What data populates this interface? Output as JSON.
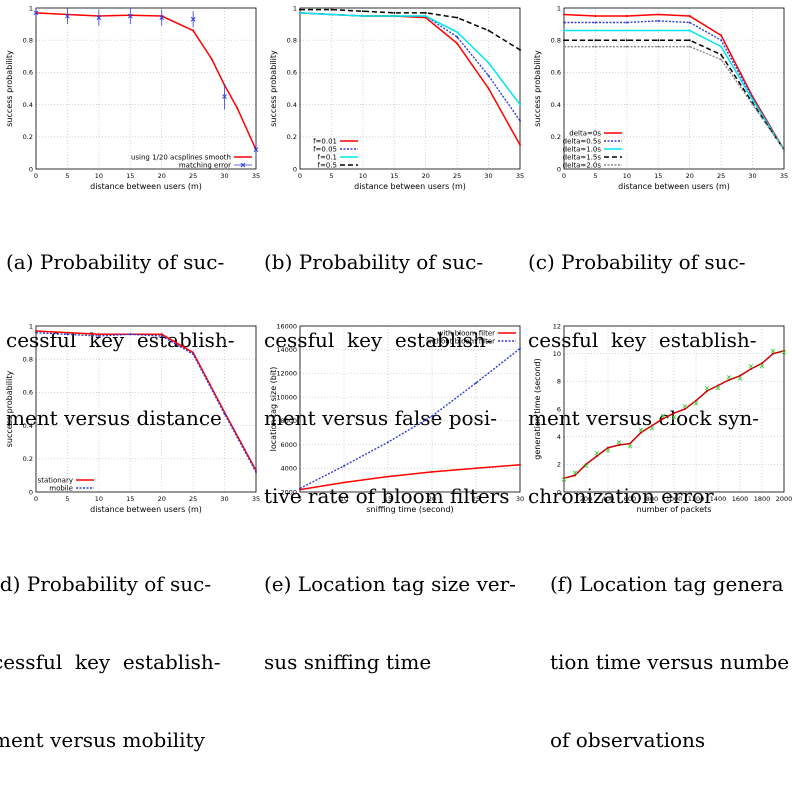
{
  "captions": {
    "a": [
      "(a) Probability of suc-",
      "cessful  key  establish-",
      "ment versus distance"
    ],
    "b": [
      "(b) Probability of suc-",
      "cessful  key  establish-",
      "ment versus false posi-",
      "tive rate of bloom filters"
    ],
    "c": [
      "(c) Probability of suc-",
      "cessful  key  establish-",
      "ment versus clock syn-",
      "chronization error"
    ],
    "d": [
      "(d) Probability of suc-",
      "cessful  key  establish-",
      "ment versus mobility"
    ],
    "e": [
      "(e) Location tag size ver-",
      "sus sniffing time"
    ],
    "f": [
      "(f) Location tag genera",
      "tion time versus numbe",
      "of observations"
    ]
  },
  "chart_data": [
    {
      "id": "a",
      "type": "line",
      "xlabel": "distance between users (m)",
      "ylabel": "success probability",
      "xlim": [
        0,
        35
      ],
      "ylim": [
        0,
        1
      ],
      "xticks": [
        "0",
        "5",
        "10",
        "15",
        "20",
        "25",
        "30",
        "35"
      ],
      "yticks": [
        "0",
        "0.2",
        "0.4",
        "0.6",
        "0.8",
        "1"
      ],
      "grid": true,
      "legend": "bottom-right",
      "series": [
        {
          "name": "using 1/20 acsplines smooth",
          "color": "#ff0000",
          "style": "solid",
          "x": [
            0,
            5,
            10,
            15,
            20,
            25,
            28,
            30,
            32,
            35
          ],
          "y": [
            0.97,
            0.96,
            0.95,
            0.955,
            0.95,
            0.86,
            0.68,
            0.52,
            0.38,
            0.12
          ]
        },
        {
          "name": "matching error",
          "color": "#2e3dd8",
          "style": "errorbar",
          "x": [
            0,
            5,
            10,
            15,
            20,
            25,
            30,
            35
          ],
          "y": [
            0.97,
            0.95,
            0.94,
            0.95,
            0.94,
            0.93,
            0.45,
            0.12
          ],
          "err": [
            0.03,
            0.05,
            0.05,
            0.05,
            0.05,
            0.05,
            0.08,
            0.05
          ]
        }
      ]
    },
    {
      "id": "b",
      "type": "line",
      "xlabel": "distance between users (m)",
      "ylabel": "success probability",
      "xlim": [
        0,
        35
      ],
      "ylim": [
        0,
        1
      ],
      "xticks": [
        "0",
        "5",
        "10",
        "15",
        "20",
        "25",
        "30",
        "35"
      ],
      "yticks": [
        "0",
        "0.2",
        "0.4",
        "0.6",
        "0.8",
        "1"
      ],
      "grid": true,
      "legend": "bottom-left",
      "series": [
        {
          "name": "f=0.01",
          "color": "#ff0000",
          "style": "solid",
          "x": [
            0,
            5,
            10,
            15,
            20,
            25,
            30,
            35
          ],
          "y": [
            0.97,
            0.96,
            0.95,
            0.95,
            0.94,
            0.78,
            0.5,
            0.15
          ]
        },
        {
          "name": "f=0.05",
          "color": "#2e3dd8",
          "style": "dotted",
          "x": [
            0,
            5,
            10,
            15,
            20,
            25,
            30,
            35
          ],
          "y": [
            0.97,
            0.96,
            0.95,
            0.95,
            0.95,
            0.82,
            0.58,
            0.3
          ]
        },
        {
          "name": "f=0.1",
          "color": "#00e5ee",
          "style": "solid",
          "x": [
            0,
            5,
            10,
            15,
            20,
            25,
            30,
            35
          ],
          "y": [
            0.97,
            0.96,
            0.95,
            0.95,
            0.95,
            0.85,
            0.66,
            0.4
          ]
        },
        {
          "name": "f=0.5",
          "color": "#000000",
          "style": "dashed",
          "x": [
            0,
            5,
            10,
            15,
            20,
            25,
            30,
            35
          ],
          "y": [
            0.99,
            0.99,
            0.98,
            0.97,
            0.97,
            0.94,
            0.86,
            0.74
          ]
        }
      ]
    },
    {
      "id": "c",
      "type": "line",
      "xlabel": "distance between users (m)",
      "ylabel": "success probability",
      "xlim": [
        0,
        35
      ],
      "ylim": [
        0,
        1
      ],
      "xticks": [
        "0",
        "5",
        "10",
        "15",
        "20",
        "25",
        "30",
        "35"
      ],
      "yticks": [
        "0",
        "0.2",
        "0.4",
        "0.6",
        "0.8",
        "1"
      ],
      "grid": true,
      "legend": "bottom-left",
      "series": [
        {
          "name": "delta=0s",
          "color": "#ff0000",
          "style": "solid",
          "x": [
            0,
            5,
            10,
            15,
            20,
            25,
            30,
            35
          ],
          "y": [
            0.96,
            0.95,
            0.95,
            0.96,
            0.95,
            0.83,
            0.45,
            0.12
          ]
        },
        {
          "name": "delta=0.5s",
          "color": "#2e3dd8",
          "style": "dotted",
          "x": [
            0,
            5,
            10,
            15,
            20,
            25,
            30,
            35
          ],
          "y": [
            0.91,
            0.91,
            0.91,
            0.92,
            0.91,
            0.8,
            0.44,
            0.12
          ]
        },
        {
          "name": "delta=1.0s",
          "color": "#00e5ee",
          "style": "solid",
          "x": [
            0,
            5,
            10,
            15,
            20,
            25,
            30,
            35
          ],
          "y": [
            0.86,
            0.86,
            0.86,
            0.86,
            0.86,
            0.76,
            0.43,
            0.12
          ]
        },
        {
          "name": "delta=1.5s",
          "color": "#000000",
          "style": "dashed",
          "x": [
            0,
            5,
            10,
            15,
            20,
            25,
            30,
            35
          ],
          "y": [
            0.8,
            0.8,
            0.8,
            0.8,
            0.8,
            0.71,
            0.41,
            0.12
          ]
        },
        {
          "name": "delta=2.0s",
          "color": "#888888",
          "style": "dotted",
          "x": [
            0,
            5,
            10,
            15,
            20,
            25,
            30,
            35
          ],
          "y": [
            0.76,
            0.76,
            0.76,
            0.76,
            0.76,
            0.68,
            0.4,
            0.12
          ]
        }
      ]
    },
    {
      "id": "d",
      "type": "line",
      "xlabel": "distance between users (m)",
      "ylabel": "success probability",
      "xlim": [
        0,
        35
      ],
      "ylim": [
        0,
        1
      ],
      "xticks": [
        "0",
        "5",
        "10",
        "15",
        "20",
        "25",
        "30",
        "35"
      ],
      "yticks": [
        "0",
        "0.2",
        "0.4",
        "0.6",
        "0.8",
        "1"
      ],
      "grid": true,
      "legend": "bottom-left",
      "series": [
        {
          "name": "stationary",
          "color": "#ff0000",
          "style": "solid",
          "x": [
            0,
            5,
            10,
            15,
            20,
            25,
            30,
            35
          ],
          "y": [
            0.97,
            0.96,
            0.95,
            0.95,
            0.95,
            0.84,
            0.48,
            0.13
          ]
        },
        {
          "name": "mobile",
          "color": "#2e3dd8",
          "style": "dotted",
          "x": [
            0,
            5,
            10,
            15,
            20,
            25,
            30,
            35
          ],
          "y": [
            0.96,
            0.95,
            0.94,
            0.95,
            0.94,
            0.83,
            0.47,
            0.12
          ]
        }
      ]
    },
    {
      "id": "e",
      "type": "line",
      "xlabel": "sniffing time (second)",
      "ylabel": "location tag size (bit)",
      "xlim": [
        5,
        30
      ],
      "ylim": [
        2000,
        16000
      ],
      "xticks": [
        "5",
        "10",
        "15",
        "20",
        "25",
        "30"
      ],
      "yticks": [
        "2000",
        "4000",
        "6000",
        "8000",
        "10000",
        "12000",
        "14000",
        "16000"
      ],
      "grid": true,
      "legend": "top-right",
      "series": [
        {
          "name": "with bloom filter",
          "color": "#ff0000",
          "style": "solid",
          "x": [
            5,
            10,
            15,
            20,
            25,
            30
          ],
          "y": [
            2200,
            2800,
            3300,
            3700,
            4000,
            4300
          ]
        },
        {
          "name": "without bloom filter",
          "color": "#2e3dd8",
          "style": "dotted",
          "x": [
            5,
            10,
            15,
            20,
            25,
            30
          ],
          "y": [
            2300,
            4200,
            6200,
            8400,
            11200,
            14100
          ]
        }
      ]
    },
    {
      "id": "f",
      "type": "line",
      "xlabel": "number of packets",
      "ylabel": "generation time (second)",
      "xlim": [
        0,
        2000
      ],
      "ylim": [
        0,
        12
      ],
      "xticks": [
        "0",
        "200",
        "400",
        "600",
        "800",
        "1000",
        "1200",
        "1400",
        "1600",
        "1800",
        "2000"
      ],
      "yticks": [
        "0",
        "2",
        "4",
        "6",
        "8",
        "10",
        "12"
      ],
      "grid": true,
      "legend": "none",
      "series": [
        {
          "color": "#cc0000",
          "style": "solid",
          "x": [
            0,
            100,
            200,
            300,
            400,
            500,
            600,
            700,
            800,
            900,
            1000,
            1100,
            1200,
            1300,
            1400,
            1500,
            1600,
            1700,
            1800,
            1900,
            2000
          ],
          "y": [
            1.0,
            1.2,
            2.0,
            2.6,
            3.2,
            3.4,
            3.5,
            4.3,
            4.8,
            5.3,
            5.7,
            6.0,
            6.6,
            7.3,
            7.7,
            8.1,
            8.4,
            8.9,
            9.3,
            10.0,
            10.2
          ]
        },
        {
          "color": "#33cc33",
          "style": "markers",
          "x": [
            0,
            100,
            200,
            300,
            400,
            500,
            600,
            700,
            800,
            900,
            1000,
            1100,
            1200,
            1300,
            1400,
            1500,
            1600,
            1700,
            1800,
            1900,
            2000
          ],
          "y": [
            0.9,
            1.4,
            1.9,
            2.8,
            3.0,
            3.6,
            3.3,
            4.5,
            4.6,
            5.5,
            5.4,
            6.2,
            6.4,
            7.5,
            7.5,
            8.3,
            8.2,
            9.1,
            9.1,
            10.2,
            10.1
          ]
        }
      ]
    }
  ]
}
